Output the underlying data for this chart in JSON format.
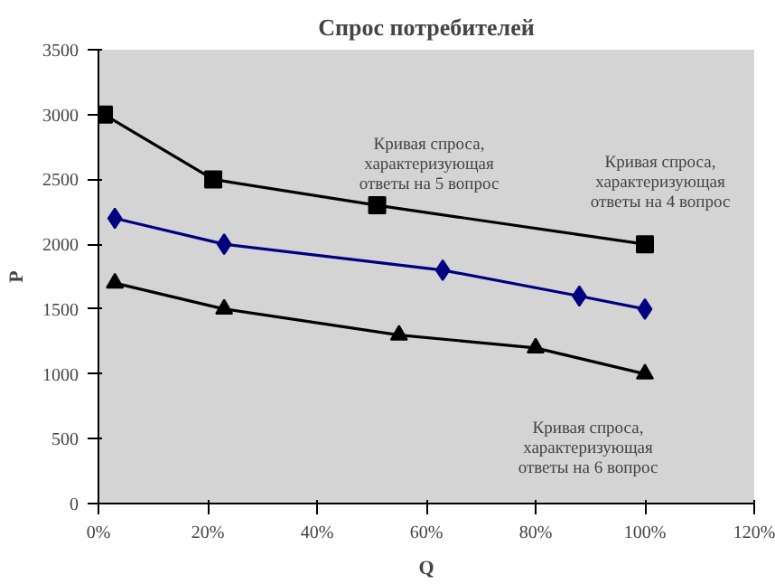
{
  "chart_data": {
    "type": "line",
    "title": "Спрос потребителей",
    "xlabel": "Q",
    "ylabel": "P",
    "series": [
      {
        "color": "#000000",
        "marker": "square",
        "x": [
          0.01,
          0.21,
          0.51,
          1.0
        ],
        "values": [
          3000,
          2500,
          2300,
          2000
        ]
      },
      {
        "color": "#000080",
        "marker": "diamond",
        "x": [
          0.03,
          0.23,
          0.63,
          0.88,
          1.0
        ],
        "values": [
          2200,
          2000,
          1800,
          1600,
          1500
        ]
      },
      {
        "color": "#000000",
        "marker": "triangle",
        "x": [
          0.03,
          0.23,
          0.55,
          0.8,
          1.0
        ],
        "values": [
          1700,
          1500,
          1300,
          1200,
          1000
        ]
      }
    ],
    "annotations": [
      "Кривая спроса,\nхарактеризующая\nответы на 5 вопрос",
      "Кривая спроса,\nхарактеризующая\nответы на 4 вопрос",
      "Кривая спроса,\nхарактеризующая\nответы на 6 вопрос"
    ],
    "xlim": [
      0,
      1.2
    ],
    "ylim": [
      0,
      3500
    ],
    "xticks": [
      {
        "value": 0,
        "label": "0%"
      },
      {
        "value": 0.2,
        "label": "20%"
      },
      {
        "value": 0.4,
        "label": "40%"
      },
      {
        "value": 0.6,
        "label": "60%"
      },
      {
        "value": 0.8,
        "label": "80%"
      },
      {
        "value": 1.0,
        "label": "100%"
      },
      {
        "value": 1.2,
        "label": "120%"
      }
    ],
    "yticks": [
      0,
      500,
      1000,
      1500,
      2000,
      2500,
      3000,
      3500
    ],
    "grid": false,
    "line_style": "solid"
  }
}
